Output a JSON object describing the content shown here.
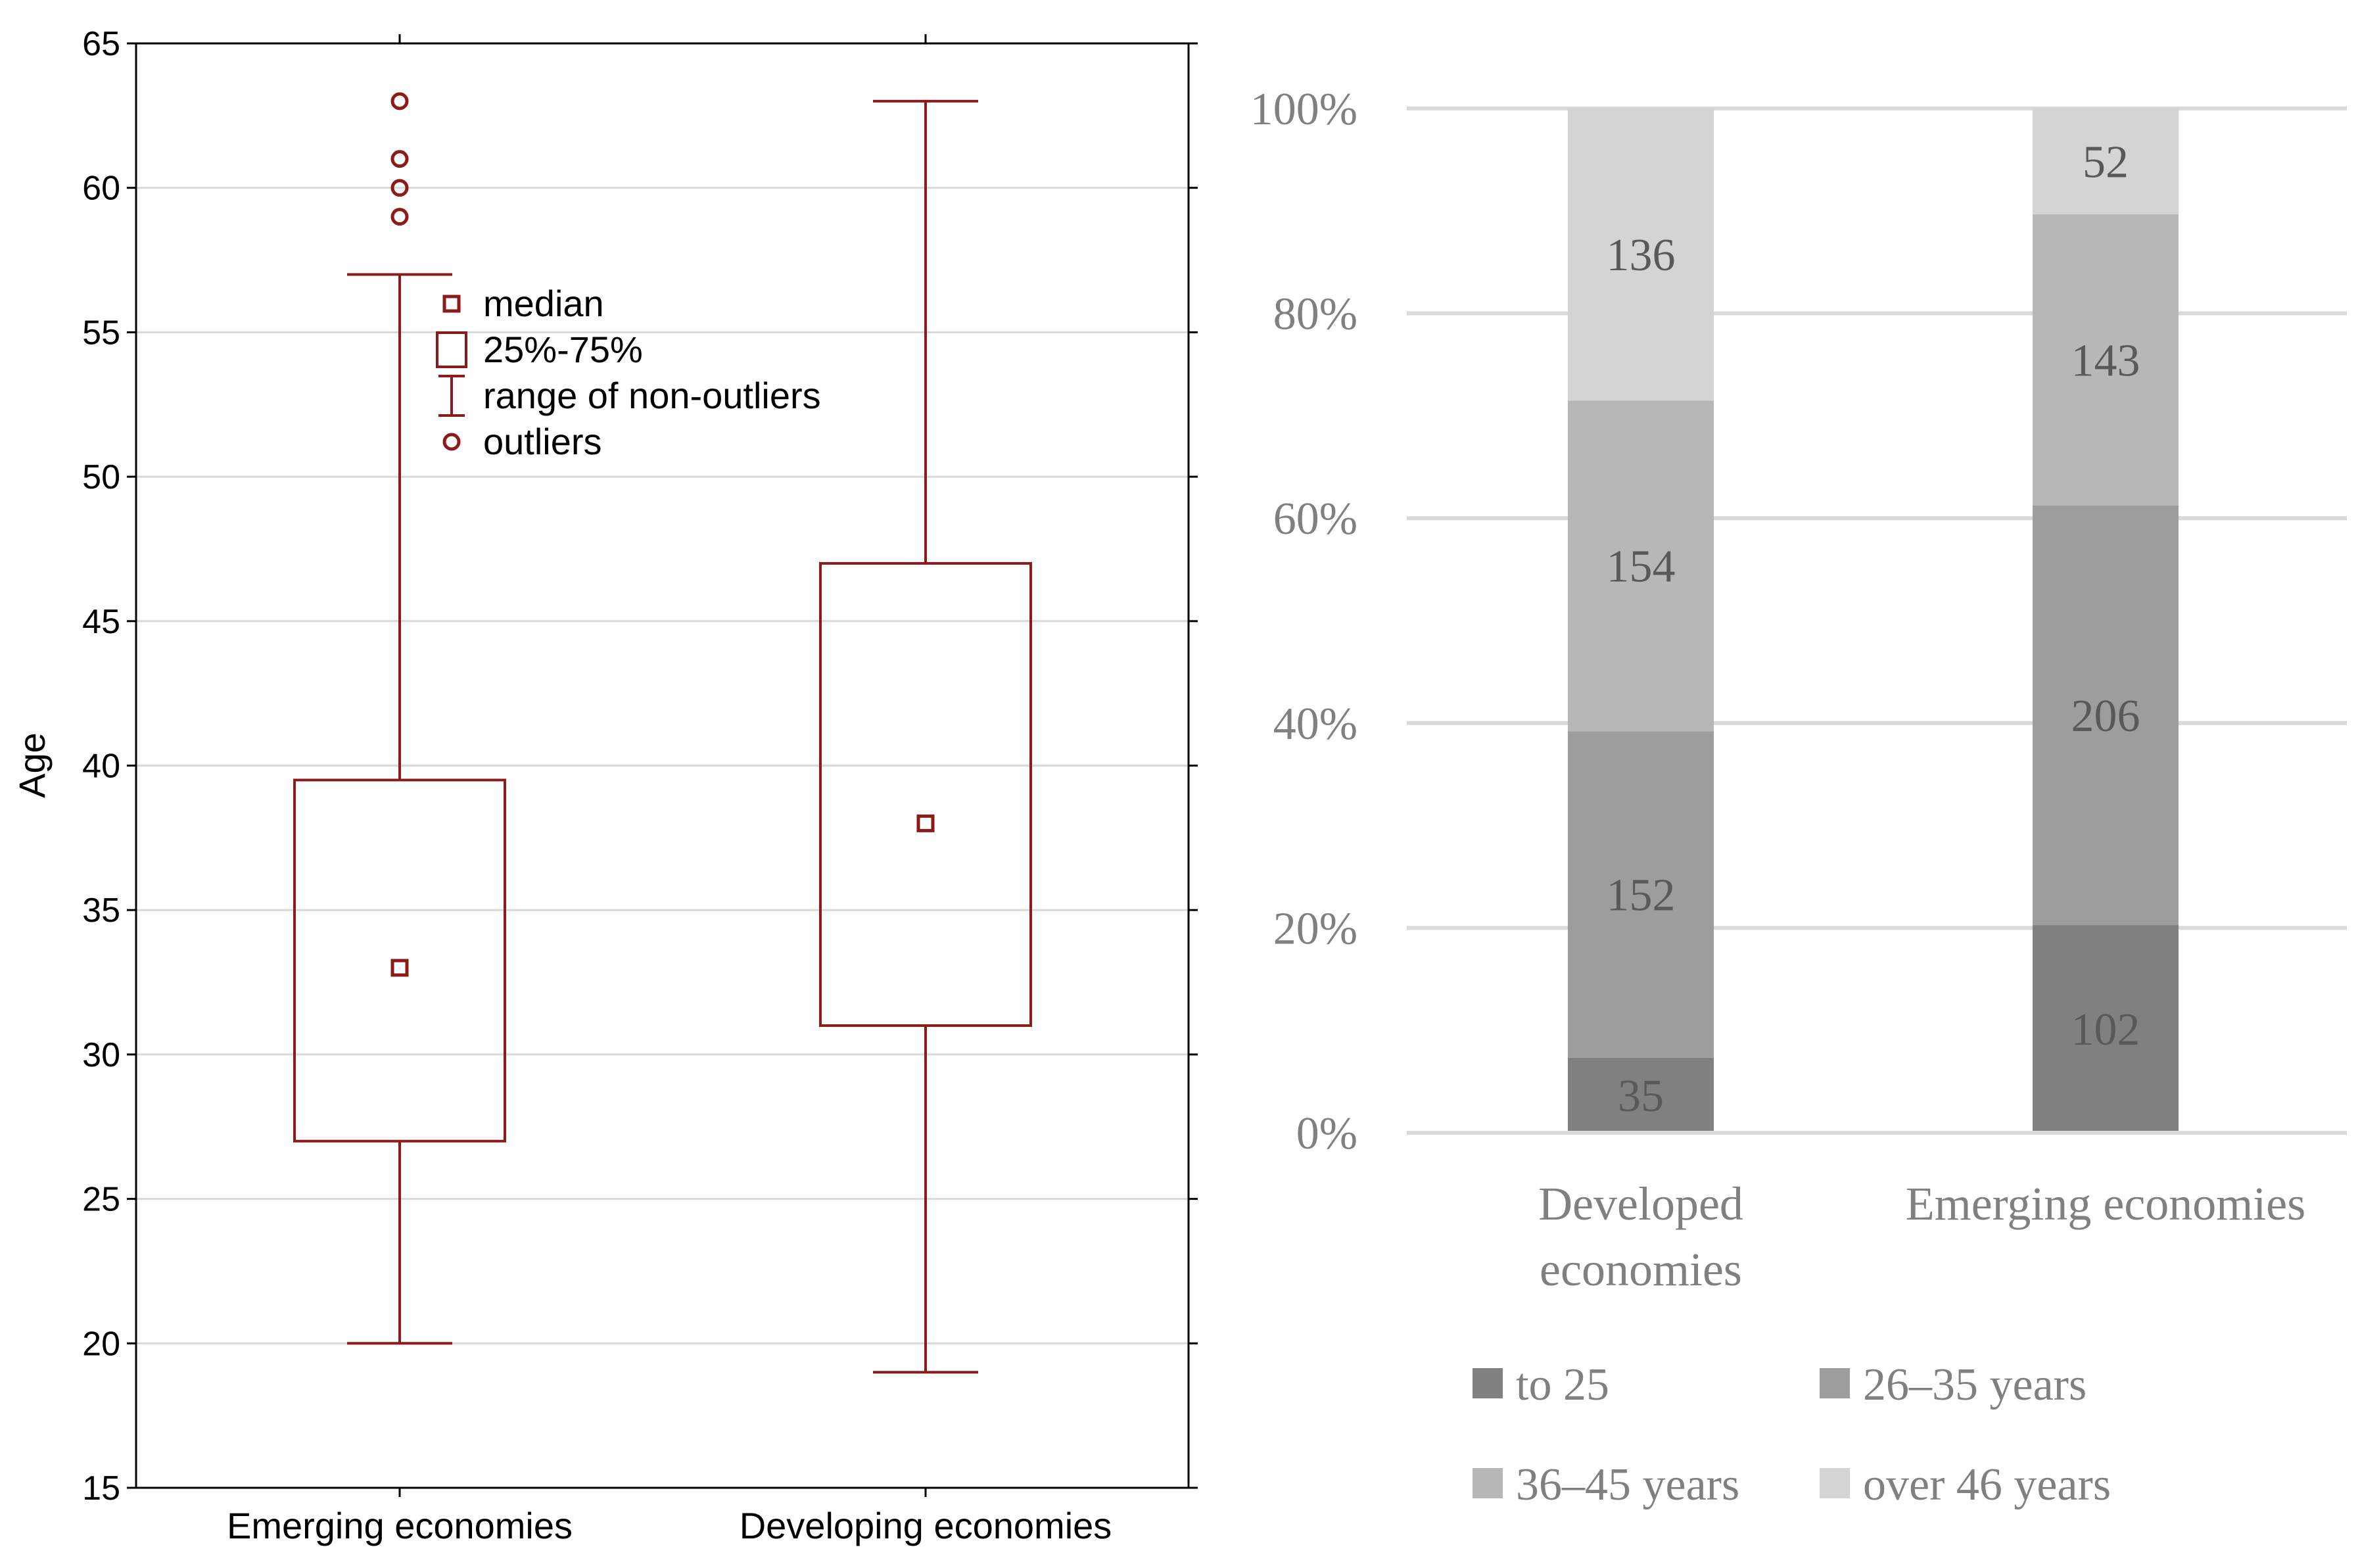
{
  "colors": {
    "box_stroke": "#8b1a1a",
    "grid": "#d9d9d9",
    "axis_text": "#000000",
    "bar_text": "#595959",
    "right_axis_text": "#808080"
  },
  "chart_data": [
    {
      "type": "box",
      "title": "",
      "xlabel": "",
      "ylabel": "Age",
      "ylim": [
        15,
        65
      ],
      "yticks": [
        15,
        20,
        25,
        30,
        35,
        40,
        45,
        50,
        55,
        60,
        65
      ],
      "ytick_labels": [
        "15",
        "20",
        "25",
        "30",
        "35",
        "40",
        "45",
        "50",
        "55",
        "60",
        "65"
      ],
      "grid": true,
      "categories": [
        "Emerging economies",
        "Developing economies"
      ],
      "boxes": [
        {
          "name": "Emerging economies",
          "median": 33,
          "q1": 27,
          "q3": 39.5,
          "whisker_low": 20,
          "whisker_high": 57,
          "outliers": [
            59,
            60,
            61,
            63
          ]
        },
        {
          "name": "Developing economies",
          "median": 38,
          "q1": 31,
          "q3": 47,
          "whisker_low": 19,
          "whisker_high": 63,
          "outliers": []
        }
      ],
      "legend": {
        "position": "top-left-inside",
        "items": [
          {
            "symbol": "median",
            "label": "median"
          },
          {
            "symbol": "box",
            "label": "25%-75%"
          },
          {
            "symbol": "whisker",
            "label": "range of non-outliers"
          },
          {
            "symbol": "outlier",
            "label": "outliers"
          }
        ]
      }
    },
    {
      "type": "bar",
      "stacked": "percent",
      "title": "",
      "xlabel": "",
      "ylabel": "",
      "ylim": [
        0,
        100
      ],
      "yticks": [
        0,
        20,
        40,
        60,
        80,
        100
      ],
      "ytick_labels": [
        "0%",
        "20%",
        "40%",
        "60%",
        "80%",
        "100%"
      ],
      "grid": true,
      "categories": [
        {
          "lines": [
            "Developed",
            "economies"
          ]
        },
        {
          "lines": [
            "Emerging economies"
          ]
        }
      ],
      "series": [
        {
          "name": "to 25",
          "color": "#808080",
          "values": [
            35,
            102
          ]
        },
        {
          "name": "26–35 years",
          "color": "#9d9d9d",
          "values": [
            152,
            206
          ]
        },
        {
          "name": "36–45 years",
          "color": "#b7b7b7",
          "values": [
            154,
            143
          ]
        },
        {
          "name": "over 46 years",
          "color": "#d4d4d4",
          "values": [
            136,
            52
          ]
        }
      ],
      "legend": {
        "position": "bottom"
      }
    }
  ]
}
